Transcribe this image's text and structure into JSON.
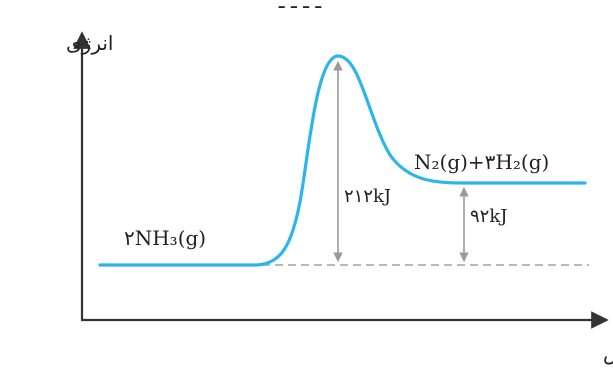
{
  "title_fragment": "ـ ـ ـ ـ",
  "y_axis_label": "انرژی",
  "x_axis_label": "پیشرفت واکنش",
  "reactant": "۲NH₃(g)",
  "product": "N₂(g)+۳H₂(g)",
  "activation_energy": "۲۱۲kJ",
  "reaction_energy": "۹۲kJ",
  "colors": {
    "curve": "#2bb5ea",
    "axis": "#333333",
    "arrow": "#9a9a9a",
    "baseline": "#b8b8b8",
    "text": "#222222"
  }
}
